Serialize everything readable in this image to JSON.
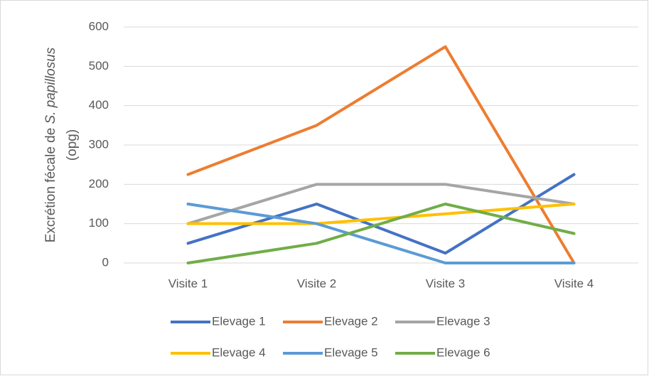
{
  "chart_data": {
    "type": "line",
    "y_label_lines": [
      [
        {
          "text": "Excrétion fécale de "
        },
        {
          "text": "S. papillosus",
          "italic": true
        }
      ],
      [
        {
          "text": "(opg)"
        }
      ]
    ],
    "categories": [
      "Visite 1",
      "Visite 2",
      "Visite 3",
      "Visite 4"
    ],
    "series": [
      {
        "name": "Elevage 1",
        "color": "#4472c4",
        "values": [
          50,
          150,
          25,
          225
        ]
      },
      {
        "name": "Elevage 2",
        "color": "#ed7d31",
        "values": [
          225,
          350,
          550,
          0
        ]
      },
      {
        "name": "Elevage 3",
        "color": "#a5a5a5",
        "values": [
          100,
          200,
          200,
          150
        ]
      },
      {
        "name": "Elevage 4",
        "color": "#ffc000",
        "values": [
          100,
          100,
          125,
          150
        ]
      },
      {
        "name": "Elevage 5",
        "color": "#5b9bd5",
        "values": [
          150,
          100,
          0,
          0
        ]
      },
      {
        "name": "Elevage 6",
        "color": "#70ad47",
        "values": [
          0,
          50,
          150,
          75
        ]
      }
    ],
    "ylim": [
      0,
      600
    ],
    "yticks": [
      0,
      100,
      200,
      300,
      400,
      500,
      600
    ],
    "grid": true,
    "legend": "bottom"
  }
}
